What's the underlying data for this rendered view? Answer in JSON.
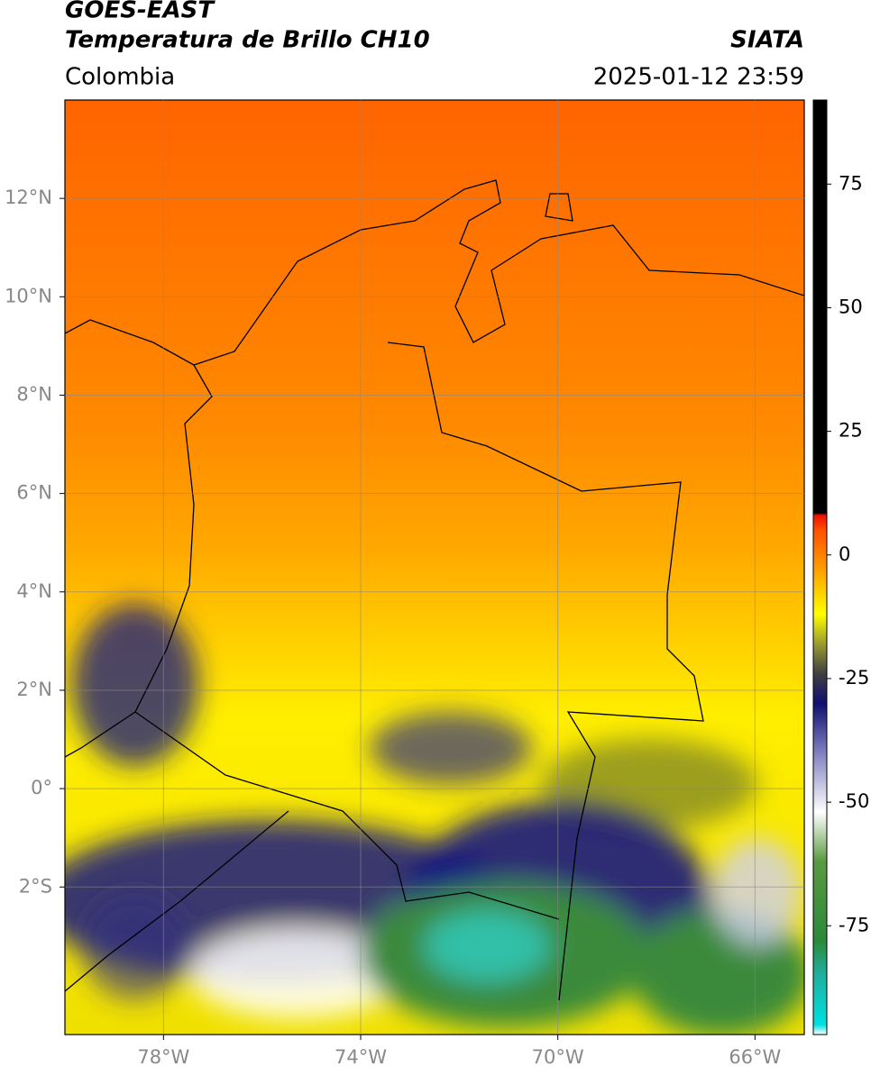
{
  "chart_data": {
    "type": "map",
    "title": "GOES-EAST",
    "subtitle": "Temperatura de Brillo CH10",
    "source": "SIATA",
    "region": "Colombia",
    "timestamp": "2025-01-12 23:59",
    "xlim": [
      -80,
      -65
    ],
    "ylim": [
      -5,
      14
    ],
    "xticks": [
      {
        "value": -78,
        "label": "78°W"
      },
      {
        "value": -74,
        "label": "74°W"
      },
      {
        "value": -70,
        "label": "70°W"
      },
      {
        "value": -66,
        "label": "66°W"
      }
    ],
    "yticks": [
      {
        "value": 12,
        "label": "12°N"
      },
      {
        "value": 10,
        "label": "10°N"
      },
      {
        "value": 8,
        "label": "8°N"
      },
      {
        "value": 6,
        "label": "6°N"
      },
      {
        "value": 4,
        "label": "4°N"
      },
      {
        "value": 2,
        "label": "2°N"
      },
      {
        "value": 0,
        "label": "0°"
      },
      {
        "value": -2,
        "label": "2°S"
      }
    ],
    "grid": true,
    "colorbar": {
      "lim": [
        -97,
        92
      ],
      "ticks": [
        75,
        50,
        25,
        0,
        -25,
        -50,
        -75
      ],
      "stops": [
        {
          "value": -97,
          "color": "#ffffff"
        },
        {
          "value": -95,
          "color": "#00e0e0"
        },
        {
          "value": -85,
          "color": "#20b0a0"
        },
        {
          "value": -78,
          "color": "#2a8a3a"
        },
        {
          "value": -62,
          "color": "#5a9a40"
        },
        {
          "value": -52,
          "color": "#ffffff"
        },
        {
          "value": -40,
          "color": "#8080c0"
        },
        {
          "value": -30,
          "color": "#101070"
        },
        {
          "value": -24,
          "color": "#404040"
        },
        {
          "value": -18,
          "color": "#9a9a30"
        },
        {
          "value": -12,
          "color": "#ffff00"
        },
        {
          "value": -3,
          "color": "#ffa000"
        },
        {
          "value": 5,
          "color": "#ff5000"
        },
        {
          "value": 8,
          "color": "#ee1000"
        },
        {
          "value": 8.5,
          "color": "#000000"
        },
        {
          "value": 92,
          "color": "#000000"
        }
      ]
    }
  }
}
